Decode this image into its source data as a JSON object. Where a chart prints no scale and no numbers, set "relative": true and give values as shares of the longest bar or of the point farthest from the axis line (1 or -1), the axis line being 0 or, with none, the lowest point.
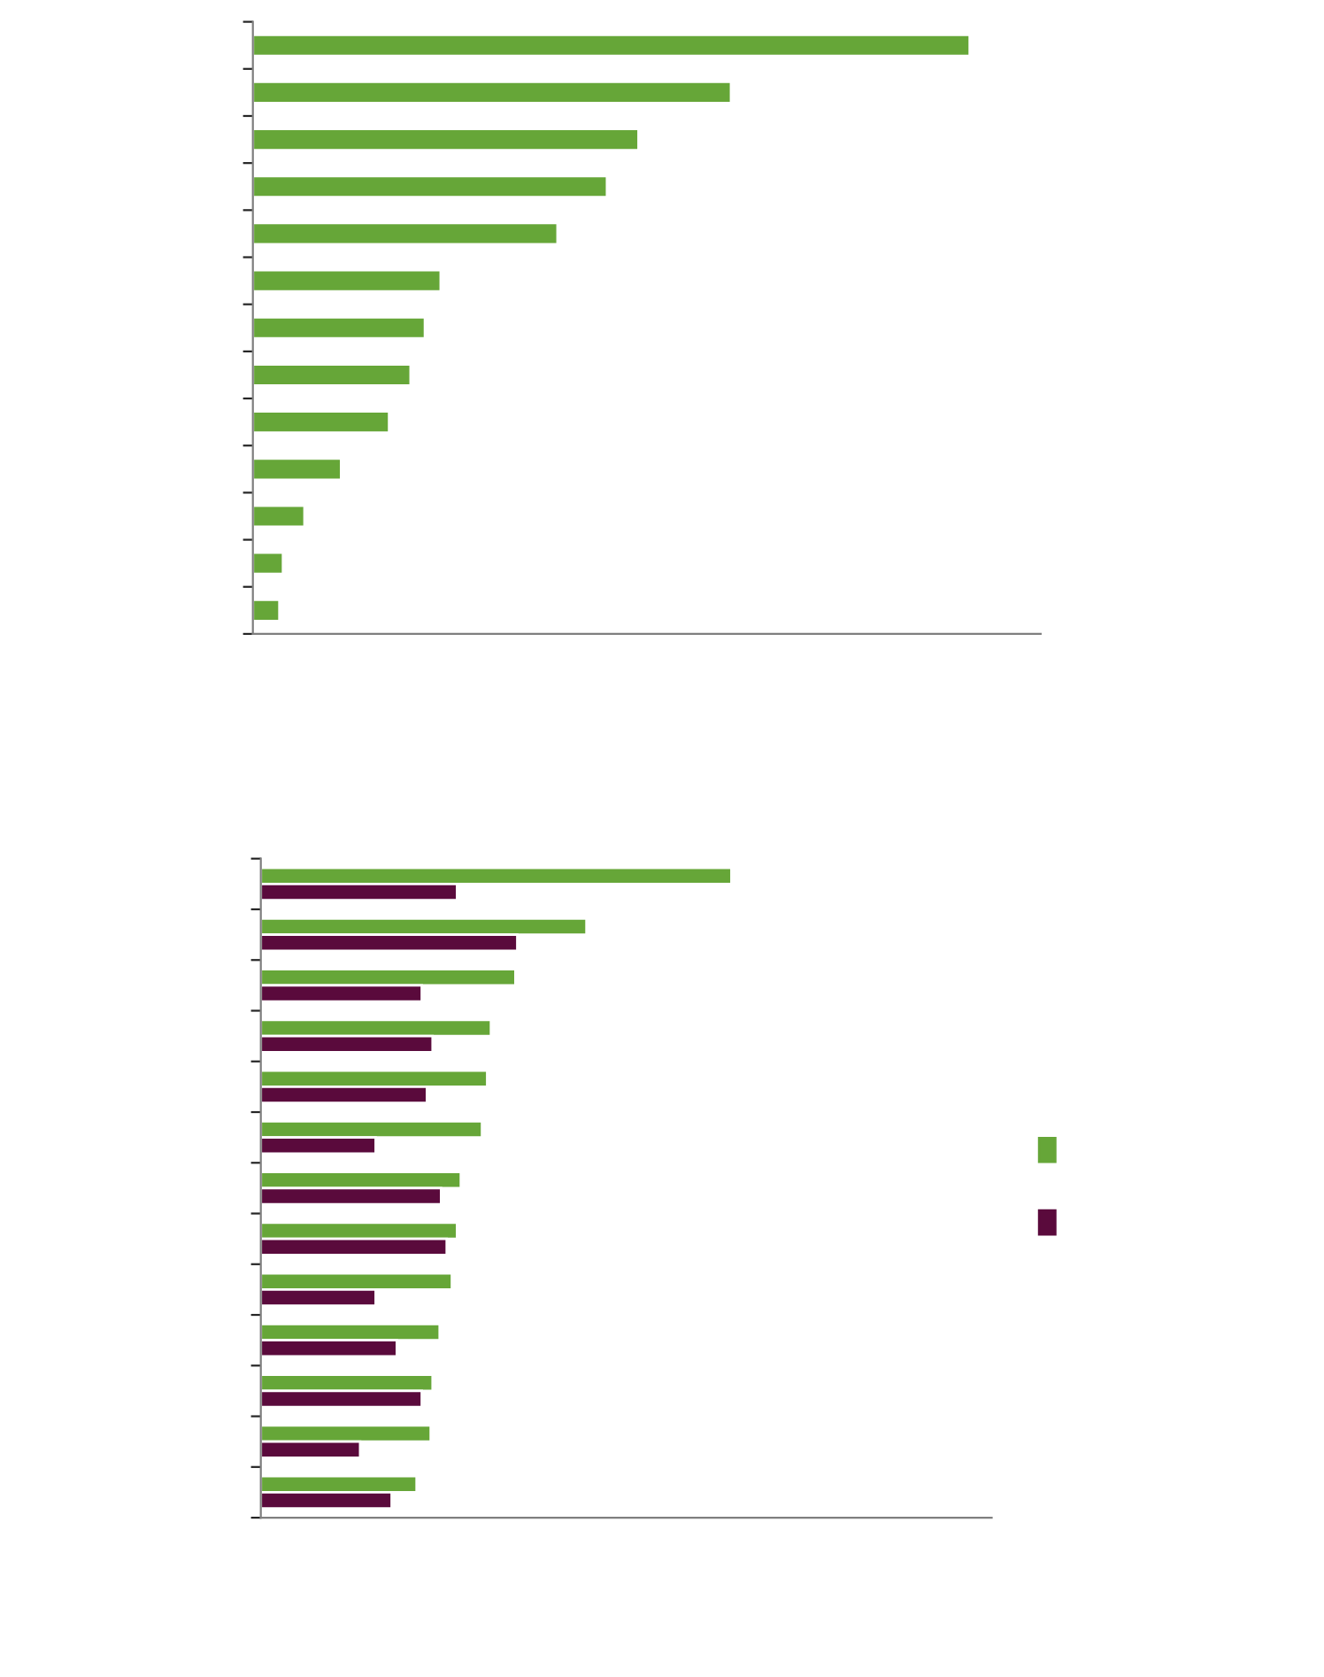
{
  "chart_data": [
    {
      "type": "bar",
      "orientation": "horizontal",
      "relative": true,
      "categories": [
        null,
        null,
        null,
        null,
        null,
        null,
        null,
        null,
        null,
        null,
        null,
        null,
        null
      ],
      "series": [
        {
          "color": "#66a638",
          "values": [
            1,
            0.667,
            0.538,
            0.494,
            0.425,
            0.262,
            0.24,
            0.22,
            0.19,
            0.123,
            0.072,
            0.042,
            0.037
          ]
        }
      ],
      "grid": false,
      "legend": false
    },
    {
      "type": "bar",
      "orientation": "horizontal",
      "relative": true,
      "categories": [
        null,
        null,
        null,
        null,
        null,
        null,
        null,
        null,
        null,
        null,
        null,
        null,
        null
      ],
      "series": [
        {
          "color": "#66a638",
          "values": [
            1,
            0.692,
            0.541,
            0.489,
            0.481,
            0.47,
            0.425,
            0.417,
            0.406,
            0.38,
            0.365,
            0.361,
            0.331
          ]
        },
        {
          "color": "#5a0a3c",
          "values": [
            0.417,
            0.545,
            0.342,
            0.365,
            0.353,
            0.244,
            0.383,
            0.395,
            0.244,
            0.289,
            0.342,
            0.211,
            0.278
          ]
        }
      ],
      "grid": false
    }
  ]
}
